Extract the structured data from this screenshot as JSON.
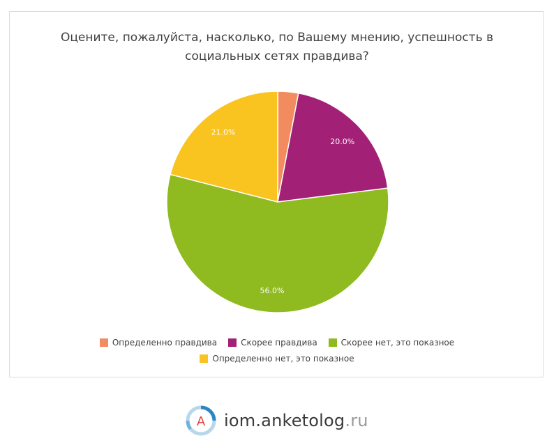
{
  "chart_data": {
    "type": "pie",
    "title_lines": [
      "Оцените, пожалуйста, насколько, по Вашему мнению, успешность в",
      "социальных сетях правдива?"
    ],
    "categories": [
      "Определенно правдива",
      "Скорее правдива",
      "Скорее нет, это показное",
      "Определенно нет, это показное"
    ],
    "values": [
      3.0,
      20.0,
      56.0,
      21.0
    ],
    "data_labels": [
      "",
      "20.0%",
      "56.0%",
      "21.0%"
    ],
    "colors": [
      "#f28c5e",
      "#a32077",
      "#8fbb20",
      "#f9c320"
    ],
    "legend_position": "bottom"
  },
  "footer": {
    "brand_main": "iom.anketolog",
    "brand_tld": ".ru",
    "logo_letter": "A"
  }
}
